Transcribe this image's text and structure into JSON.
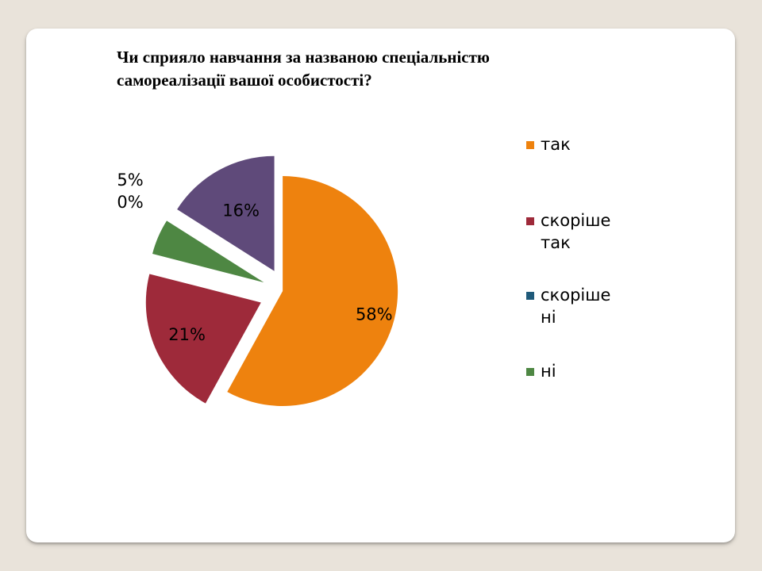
{
  "slide": {
    "title_lines": [
      "Чи сприяло навчання за названою спеціальністю",
      "самореалізації вашої особистості?"
    ]
  },
  "chart_data": {
    "type": "pie",
    "title": "Чи сприяло навчання за названою спеціальністю самореалізації вашої особистості?",
    "exploded": true,
    "legend_position": "right",
    "slices": [
      {
        "category": "так",
        "value": 58,
        "label": "58%",
        "color": "#EE820E"
      },
      {
        "category": "скоріше так",
        "value": 21,
        "label": "21%",
        "color": "#9E2A3A"
      },
      {
        "category": "скоріше ні",
        "value": 0,
        "label": "0%",
        "color": "#1F5A7A"
      },
      {
        "category": "ні",
        "value": 5,
        "label": "5%",
        "color": "#4E8743"
      },
      {
        "category": "",
        "value": 16,
        "label": "16%",
        "color": "#5F4A7A"
      }
    ],
    "legend": [
      {
        "label_lines": [
          "так"
        ],
        "color": "#EE820E"
      },
      {
        "label_lines": [
          "скоріше",
          "так"
        ],
        "color": "#9E2A3A"
      },
      {
        "label_lines": [
          "скоріше",
          "ні"
        ],
        "color": "#1F5A7A"
      },
      {
        "label_lines": [
          "ні"
        ],
        "color": "#4E8743"
      }
    ]
  }
}
